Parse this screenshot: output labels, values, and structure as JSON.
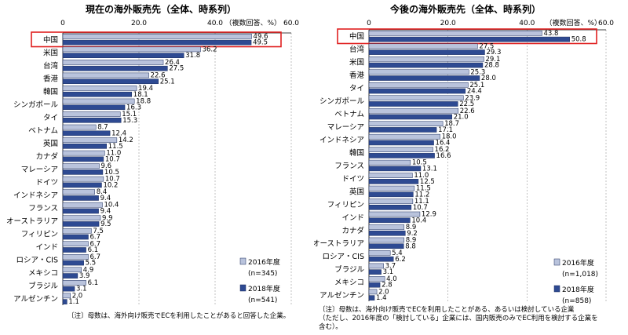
{
  "colors": {
    "y2016": "#b9c3dc",
    "y2018": "#2e4a92",
    "highlight": "#e02020"
  },
  "chart_data": [
    {
      "type": "bar",
      "orientation": "horizontal",
      "title": "現在の海外販売先（全体、時系列）",
      "unit_label": "（複数回答、%）",
      "xlim": [
        0,
        60
      ],
      "xticks": [
        "0",
        "20.0",
        "40.0",
        "60.0"
      ],
      "categories": [
        "中国",
        "米国",
        "台湾",
        "香港",
        "韓国",
        "シンガポール",
        "タイ",
        "ベトナム",
        "英国",
        "カナダ",
        "マレーシア",
        "ドイツ",
        "インドネシア",
        "フランス",
        "オーストラリア",
        "フィリピン",
        "インド",
        "ロシア・CIS",
        "メキシコ",
        "ブラジル",
        "アルゼンチン"
      ],
      "series": [
        {
          "name": "2016年度",
          "n": "(n=345)",
          "values": [
            49.6,
            36.2,
            26.4,
            22.6,
            19.4,
            18.8,
            15.1,
            8.7,
            14.2,
            11.0,
            9.6,
            10.7,
            8.4,
            10.4,
            9.9,
            7.5,
            6.7,
            6.7,
            4.9,
            6.1,
            2.0
          ]
        },
        {
          "name": "2018年度",
          "n": "(n=541)",
          "values": [
            49.5,
            31.8,
            27.5,
            25.1,
            18.1,
            16.3,
            15.3,
            12.4,
            11.5,
            10.7,
            10.5,
            10.2,
            9.4,
            9.4,
            9.5,
            6.7,
            6.1,
            5.5,
            3.9,
            3.1,
            1.1
          ]
        }
      ],
      "highlight_category": "中国"
    },
    {
      "type": "bar",
      "orientation": "horizontal",
      "title": "今後の海外販売先（全体、時系列）",
      "unit_label": "（複数回答、%）",
      "xlim": [
        0,
        60
      ],
      "xticks": [
        "0",
        "20.0",
        "40.0",
        "60.0"
      ],
      "categories": [
        "中国",
        "台湾",
        "米国",
        "香港",
        "タイ",
        "シンガポール",
        "ベトナム",
        "マレーシア",
        "インドネシア",
        "韓国",
        "フランス",
        "ドイツ",
        "英国",
        "フィリピン",
        "インド",
        "カナダ",
        "オーストラリア",
        "ロシア・CIS",
        "ブラジル",
        "メキシコ",
        "アルゼンチン"
      ],
      "series": [
        {
          "name": "2016年度",
          "n": "(n=1,018)",
          "values": [
            43.8,
            27.5,
            29.1,
            25.3,
            25.1,
            23.9,
            22.6,
            18.7,
            18.0,
            16.2,
            10.5,
            11.0,
            11.5,
            11.1,
            12.9,
            8.9,
            8.9,
            5.4,
            3.7,
            4.0,
            2.0
          ]
        },
        {
          "name": "2018年度",
          "n": "(n=858)",
          "values": [
            50.8,
            29.3,
            28.8,
            28.0,
            24.4,
            22.5,
            21.0,
            17.1,
            16.4,
            16.6,
            13.1,
            12.5,
            11.2,
            10.7,
            10.4,
            9.2,
            8.8,
            6.2,
            3.1,
            2.8,
            1.4
          ]
        }
      ],
      "highlight_category": "中国"
    }
  ],
  "notes": {
    "left": "〔注〕母数は、海外向け販売でECを利用したことがあると回答した企業。",
    "right": [
      "〔注〕母数は、海外向け販売でECを利用したことがある、あるいは検討している企業",
      "（ただし、2016年度の「検討している」企業には、国内販売のみでEC利用を検討する企業を",
      "含む）。"
    ]
  }
}
